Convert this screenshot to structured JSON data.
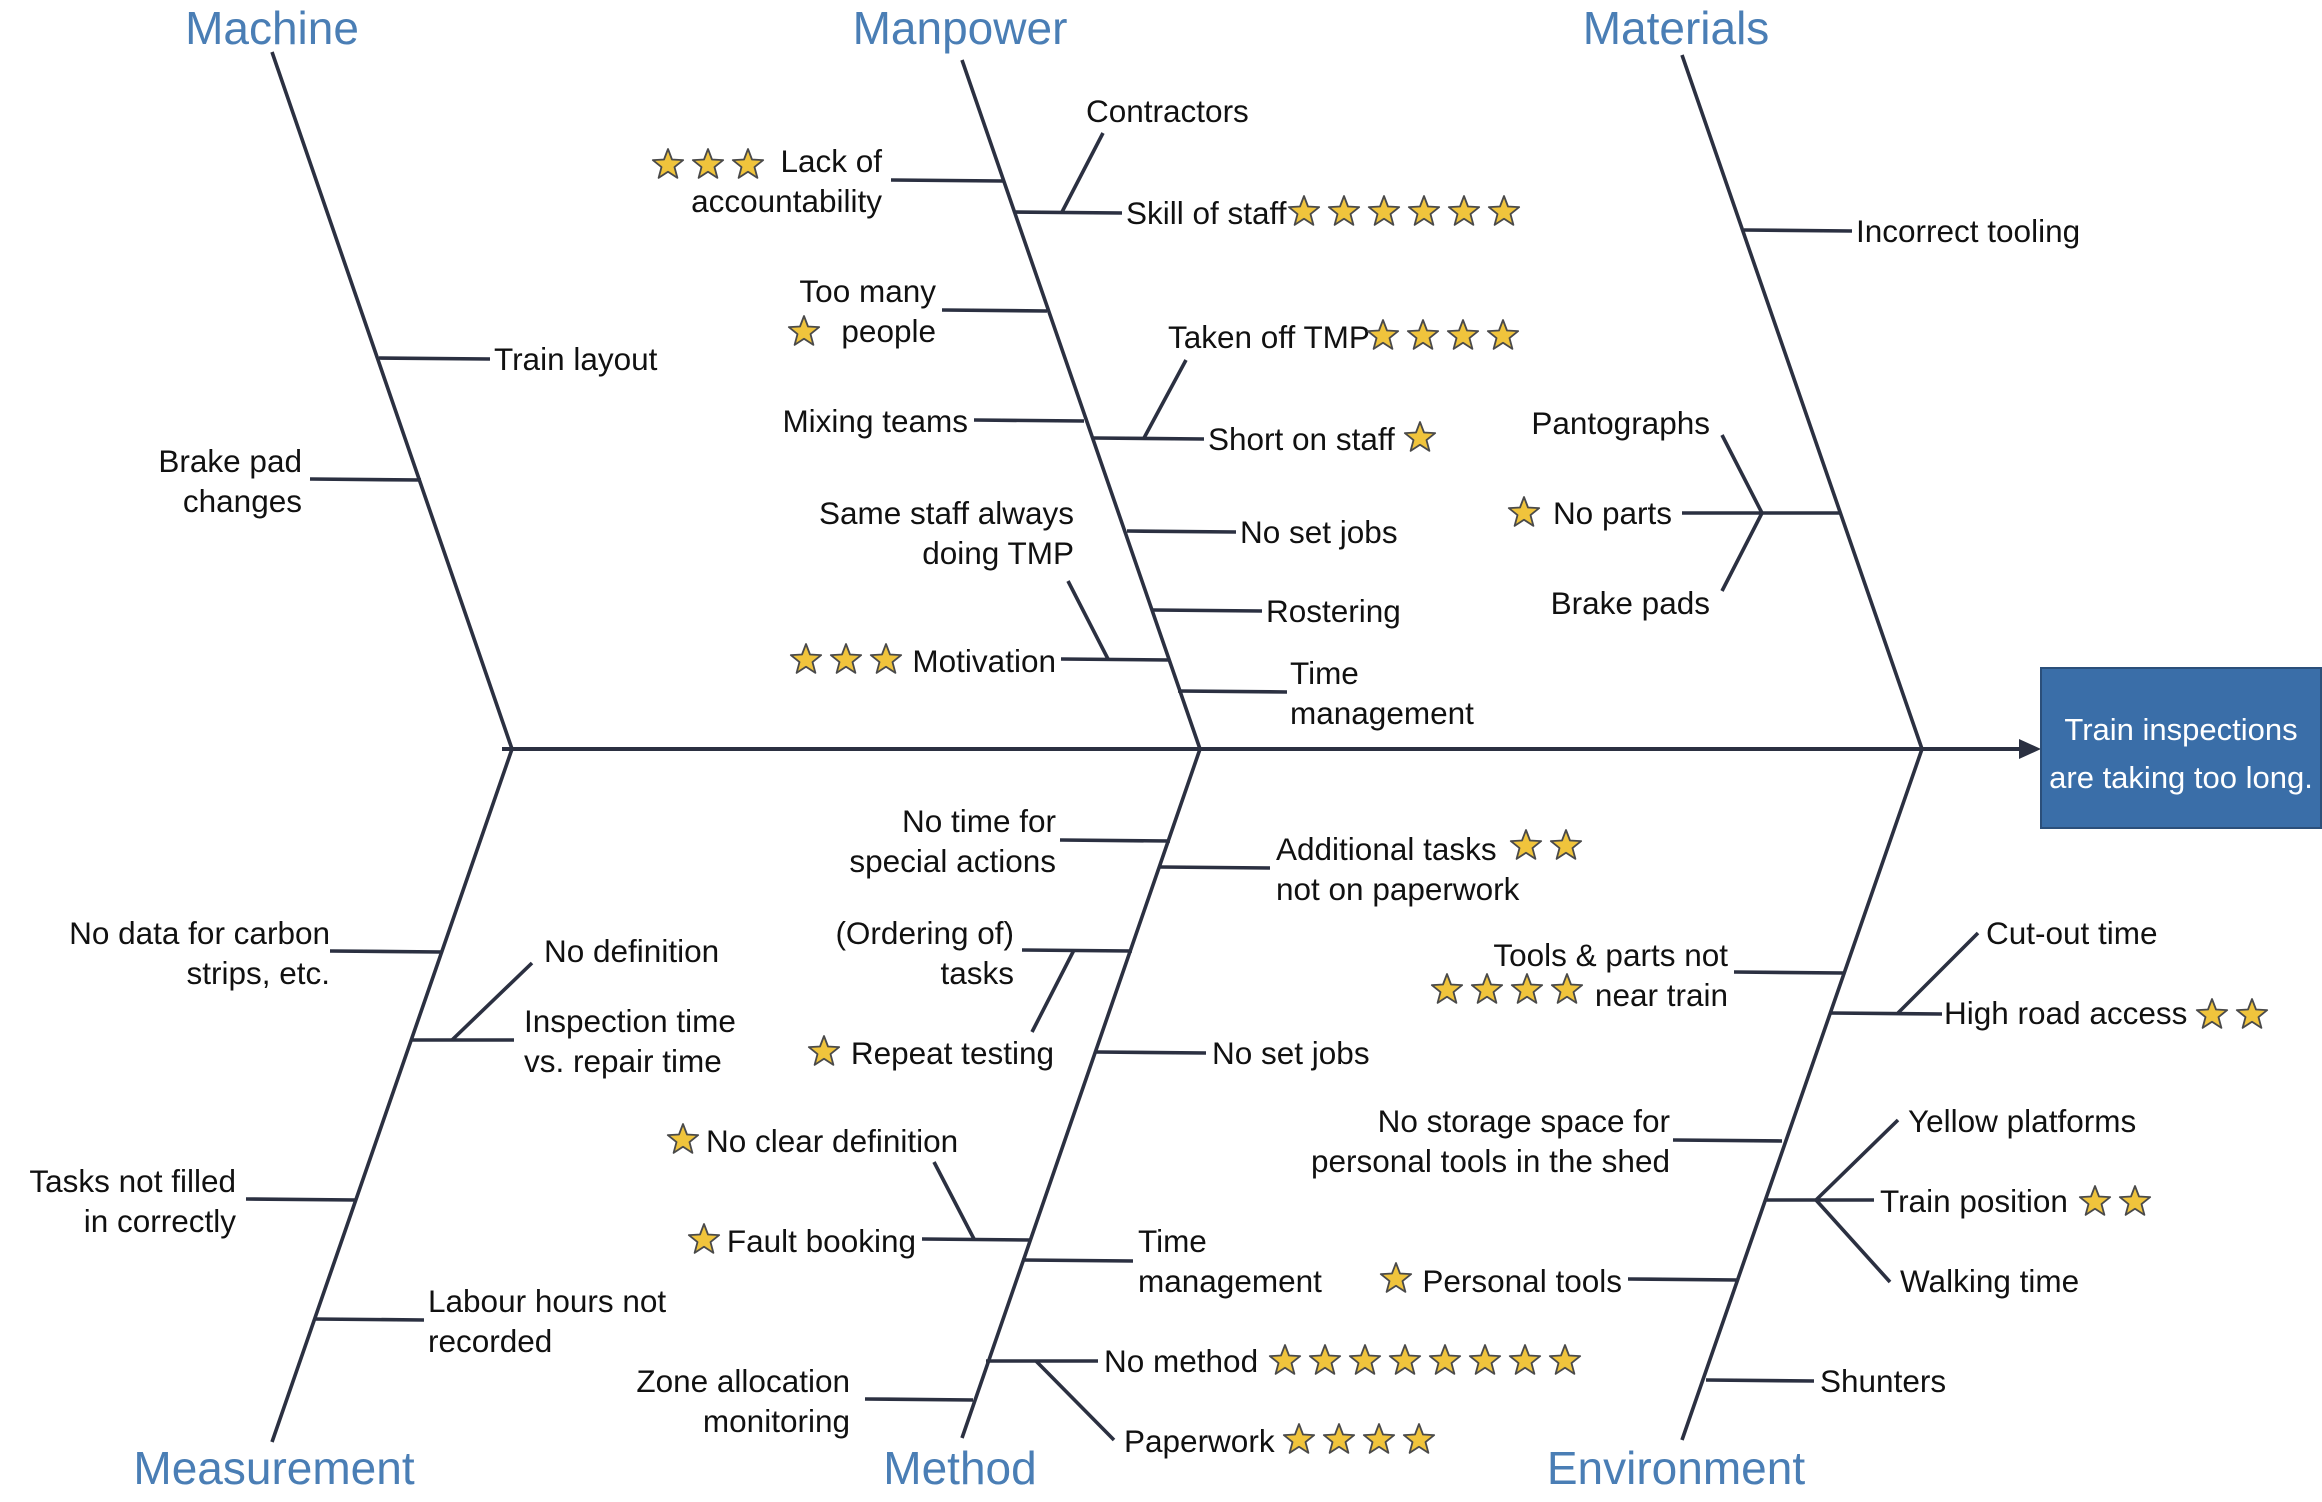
{
  "colors": {
    "category": "#4a7eb5",
    "line": "#2b3041",
    "star": "#f0c43c",
    "effect_box": "#3a6ea8",
    "effect_text": "#ffffff"
  },
  "effect": {
    "line1": "Train inspections",
    "line2": "are taking too long."
  },
  "categories": {
    "machine": "Machine",
    "manpower": "Manpower",
    "materials": "Materials",
    "measurement": "Measurement",
    "method": "Method",
    "environment": "Environment"
  },
  "causes": {
    "machine": {
      "train_layout": "Train layout",
      "brake_pad_1": "Brake pad",
      "brake_pad_2": "changes"
    },
    "manpower": {
      "contractors": "Contractors",
      "lack_1": "Lack of",
      "lack_2": "accountability",
      "skill_of_staff": "Skill of staff",
      "too_many_1": "Too many",
      "too_many_2": "people",
      "taken_off_tmp": "Taken off TMP",
      "mixing_teams": "Mixing teams",
      "short_on_staff": "Short on staff",
      "same_staff_1": "Same staff always",
      "same_staff_2": "doing TMP",
      "no_set_jobs": "No set jobs",
      "rostering": "Rostering",
      "motivation": "Motivation",
      "time_mgmt_1": "Time",
      "time_mgmt_2": "management"
    },
    "materials": {
      "incorrect_tooling": "Incorrect tooling",
      "pantographs": "Pantographs",
      "no_parts": "No parts",
      "brake_pads": "Brake pads"
    },
    "measurement": {
      "no_data_1": "No data for carbon",
      "no_data_2": "strips, etc.",
      "no_definition": "No definition",
      "inspection_1": "Inspection time",
      "inspection_2": "vs. repair time",
      "tasks_1": "Tasks not filled",
      "tasks_2": "in correctly",
      "labour_1": "Labour hours not",
      "labour_2": "recorded"
    },
    "method": {
      "no_time_1": "No time for",
      "no_time_2": "special actions",
      "additional_1": "Additional tasks",
      "additional_2": "not on paperwork",
      "ordering_1": "(Ordering of)",
      "ordering_2": "tasks",
      "repeat_testing": "Repeat testing",
      "no_set_jobs": "No set jobs",
      "no_clear_definition": "No clear definition",
      "fault_booking": "Fault booking",
      "time_mgmt_1": "Time",
      "time_mgmt_2": "management",
      "zone_1": "Zone allocation",
      "zone_2": "monitoring",
      "no_method": "No method",
      "paperwork": "Paperwork"
    },
    "environment": {
      "tools_1": "Tools & parts not",
      "tools_2": "near train",
      "cut_out_time": "Cut-out time",
      "high_road_access": "High road access",
      "storage_1": "No storage space for",
      "storage_2": "personal tools in the shed",
      "yellow_platforms": "Yellow platforms",
      "train_position": "Train position",
      "walking_time": "Walking time",
      "personal_tools": "Personal tools",
      "shunters": "Shunters"
    }
  },
  "ratings": {
    "lack_of_accountability": 3,
    "skill_of_staff": 6,
    "too_many_people": 1,
    "taken_off_tmp": 4,
    "short_on_staff": 1,
    "motivation": 3,
    "no_parts": 1,
    "additional_tasks": 2,
    "repeat_testing": 1,
    "no_clear_definition": 1,
    "fault_booking": 1,
    "no_method": 8,
    "paperwork": 4,
    "tools_parts_not_near_train": 4,
    "high_road_access": 2,
    "train_position": 2,
    "personal_tools": 1
  }
}
